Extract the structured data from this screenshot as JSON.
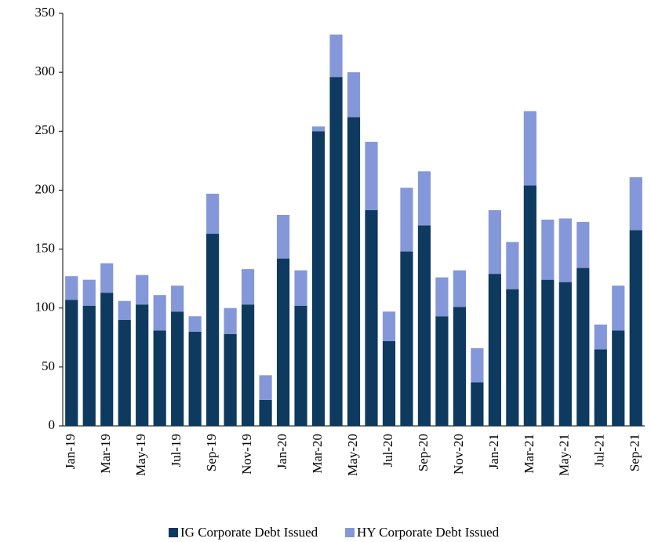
{
  "chart_data": {
    "type": "stacked_bar",
    "categories": [
      "Jan-19",
      null,
      "Mar-19",
      null,
      "May-19",
      null,
      "Jul-19",
      null,
      "Sep-19",
      null,
      "Nov-19",
      null,
      "Jan-20",
      null,
      "Mar-20",
      null,
      "May-20",
      null,
      "Jul-20",
      null,
      "Sep-20",
      null,
      "Nov-20",
      null,
      "Jan-21",
      null,
      "Mar-21",
      null,
      "May-21",
      null,
      "Jul-21",
      null,
      "Sep-21"
    ],
    "series": [
      {
        "name": "IG Corporate Debt Issued",
        "color": "#0d3a5e",
        "values": [
          107,
          102,
          113,
          90,
          103,
          81,
          97,
          80,
          163,
          78,
          103,
          22,
          142,
          102,
          250,
          296,
          262,
          183,
          72,
          148,
          170,
          93,
          101,
          37,
          129,
          116,
          204,
          124,
          122,
          134,
          65,
          81,
          166
        ]
      },
      {
        "name": "HY Corporate Debt Issued",
        "color": "#8497d9",
        "values": [
          20,
          22,
          25,
          16,
          25,
          30,
          22,
          13,
          34,
          22,
          30,
          21,
          37,
          30,
          4,
          36,
          38,
          58,
          25,
          54,
          46,
          33,
          31,
          29,
          54,
          40,
          63,
          51,
          54,
          39,
          21,
          38,
          45
        ]
      }
    ],
    "ylim": [
      0,
      350
    ],
    "yticks": [
      0,
      50,
      100,
      150,
      200,
      250,
      300,
      350
    ],
    "legend": "bottom"
  }
}
